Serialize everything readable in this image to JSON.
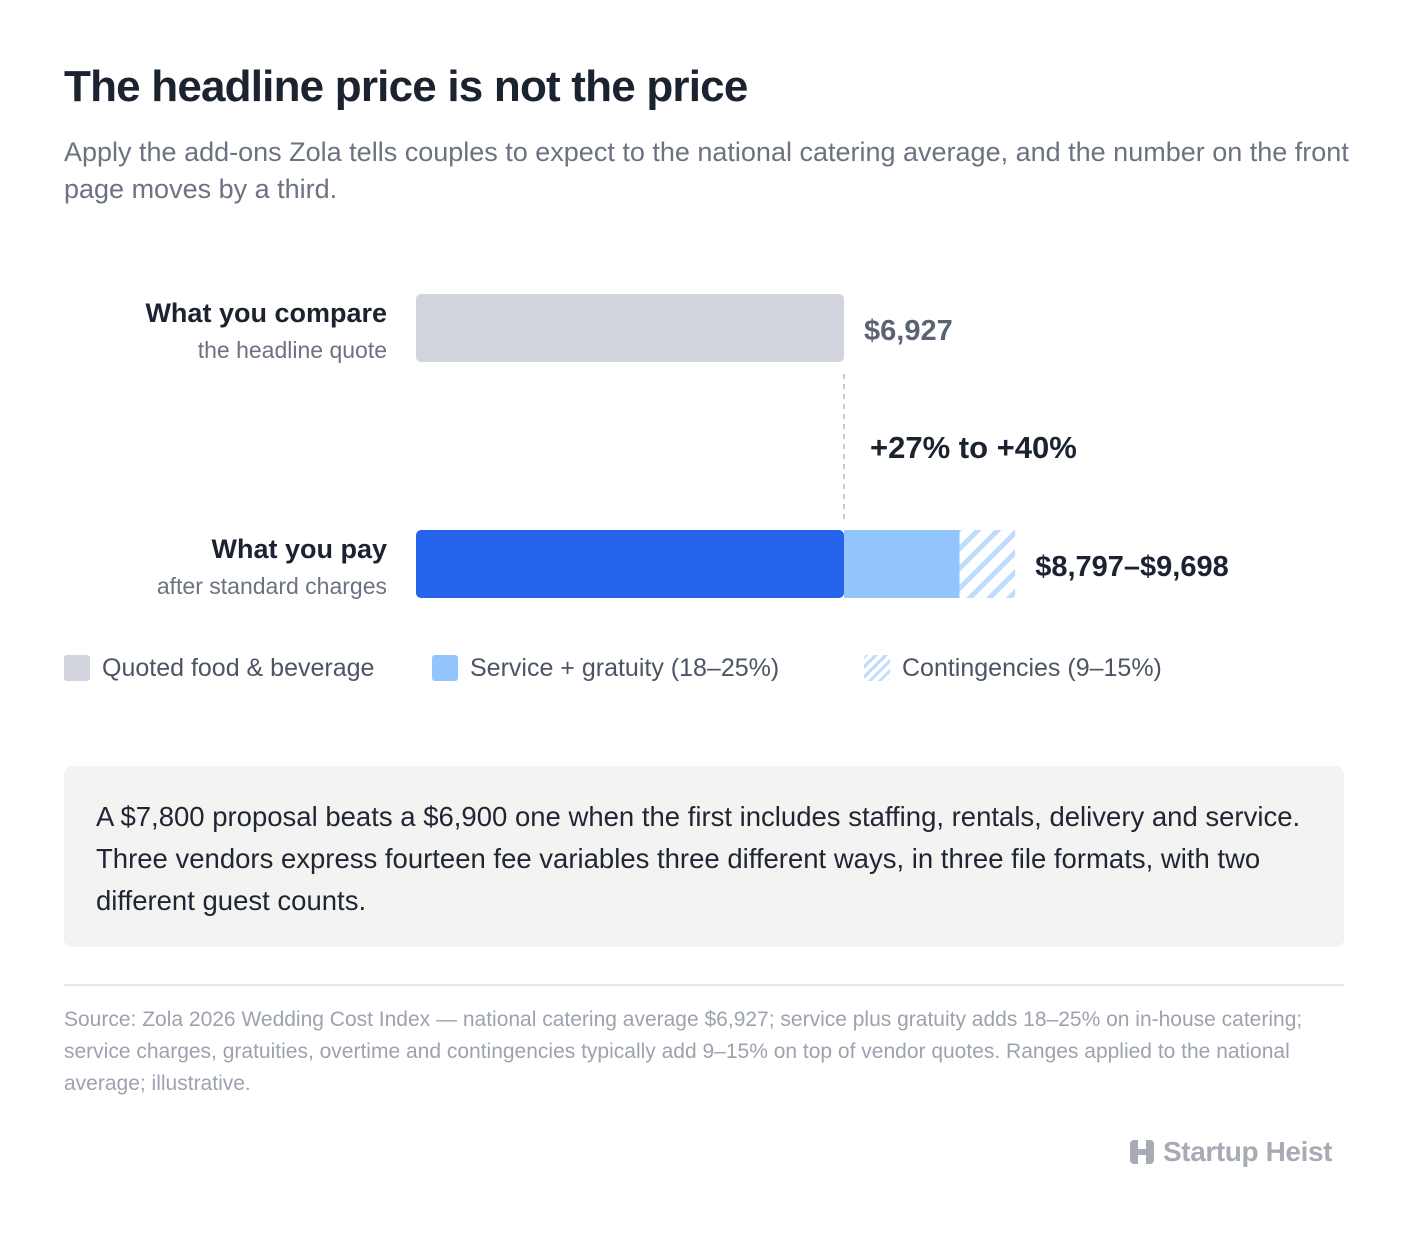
{
  "header": {
    "title": "The headline price is not the price",
    "subtitle": "Apply the add-ons Zola tells couples to expect to the national catering average, and the number on the front page moves by a third."
  },
  "chart_data": {
    "type": "bar",
    "orientation": "horizontal",
    "stacked": true,
    "value_unit": "USD",
    "rows": [
      {
        "label": "What you compare",
        "sublabel": "the headline quote",
        "value_label": "$6,927",
        "segments": [
          {
            "series": "Quoted food & beverage",
            "start": 0,
            "end": 6927
          }
        ]
      },
      {
        "label": "What you pay",
        "sublabel": "after standard charges",
        "value_label": "$8,797–$9,698",
        "segments": [
          {
            "series": "Quoted food & beverage",
            "start": 0,
            "end": 6927
          },
          {
            "series": "Service + gratuity (18–25%)",
            "start": 6927,
            "end": 8797
          },
          {
            "series": "Contingencies (9–15%)",
            "start": 8797,
            "end": 9698
          }
        ]
      }
    ],
    "annotation": "+27% to +40%",
    "xlim": [
      0,
      9698
    ],
    "grid": false,
    "legend_position": "bottom",
    "colors": {
      "quoted_top": "#d2d5dd",
      "quoted_bottom": "#2563eb",
      "service": "#93c5fd",
      "contingency": "#bfdbfe"
    }
  },
  "legend": {
    "items": [
      {
        "label": "Quoted food & beverage",
        "swatch": "quoted"
      },
      {
        "label": "Service + gratuity (18–25%)",
        "swatch": "service"
      },
      {
        "label": "Contingencies (9–15%)",
        "swatch": "contingency"
      }
    ]
  },
  "note": {
    "text": "A $7,800 proposal beats a $6,900 one when the first includes staffing, rentals, delivery and service. Three vendors express fourteen fee variables three different ways, in three file formats, with two different guest counts."
  },
  "footer": {
    "source": "Source: Zola 2026 Wedding Cost Index — national catering average $6,927; service plus gratuity adds 18–25% on in-house catering; service charges, gratuities, overtime and contingencies typically add 9–15% on top of vendor quotes. Ranges applied to the national average; illustrative.",
    "brand": "Startup Heist",
    "brand_icon": "startup-heist-logo-icon"
  }
}
